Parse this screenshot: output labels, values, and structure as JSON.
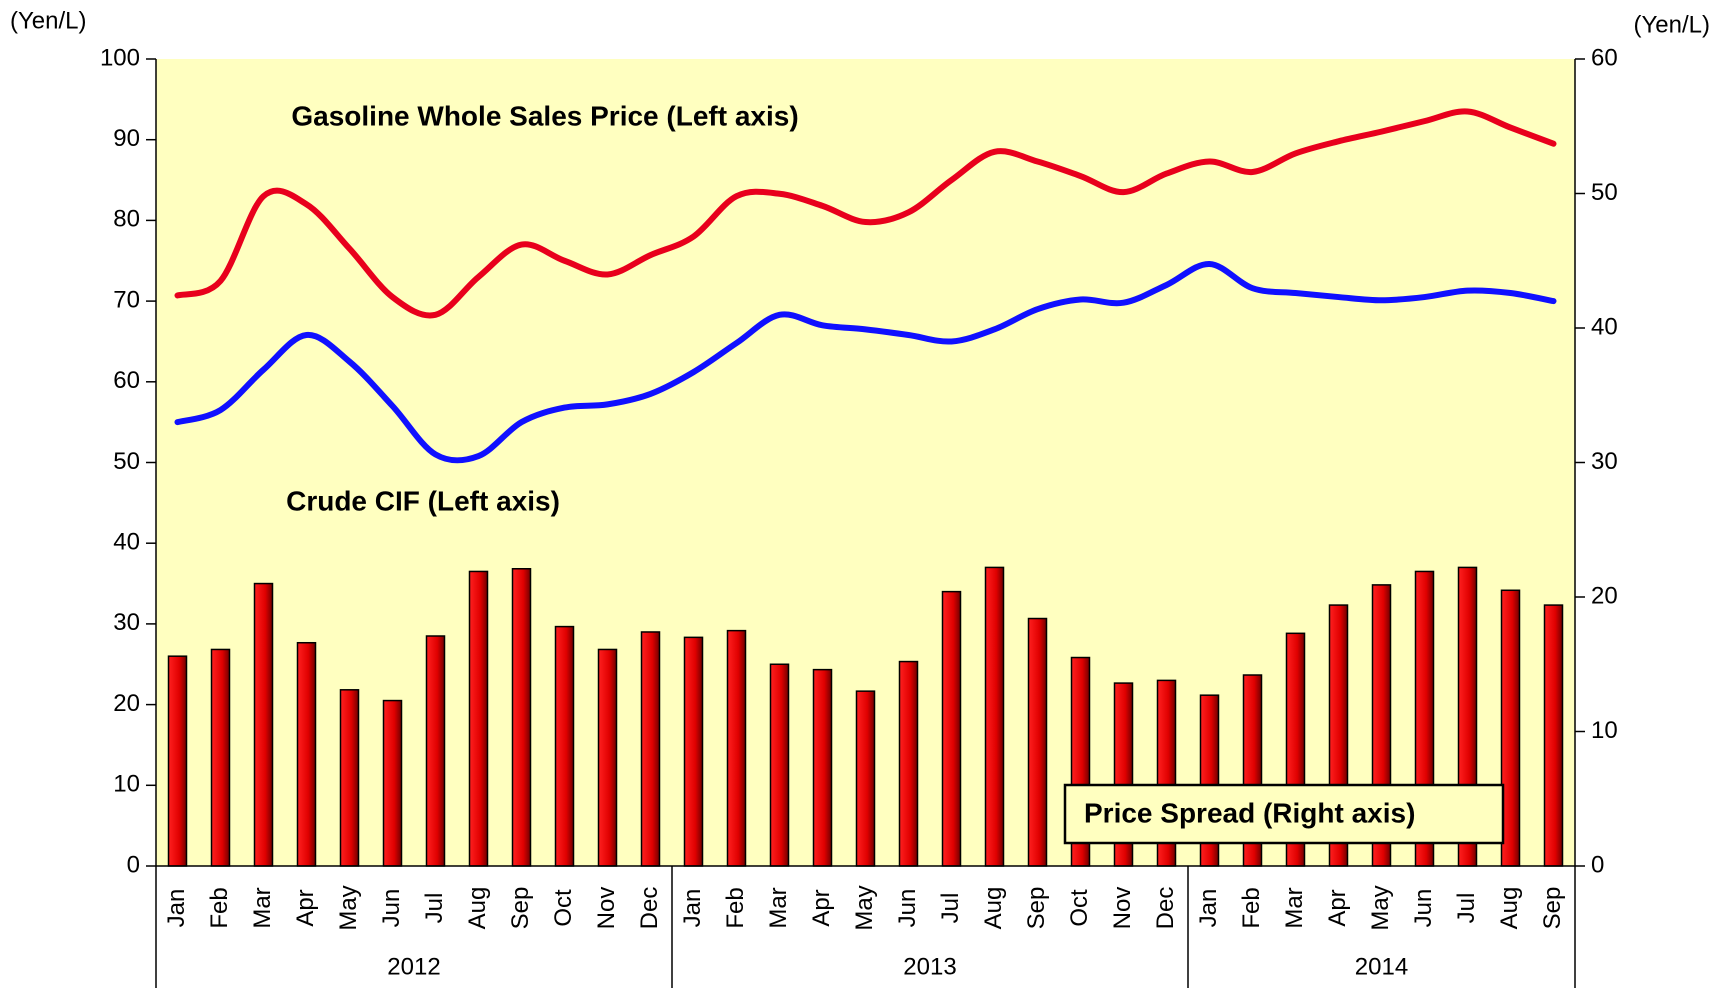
{
  "chart_data": {
    "type": "bar_line",
    "y_label": "(Yen/L)",
    "y2_label": "(Yen/L)",
    "categories": [
      "Jan",
      "Feb",
      "Mar",
      "Apr",
      "May",
      "Jun",
      "Jul",
      "Aug",
      "Sep",
      "Oct",
      "Nov",
      "Dec",
      "Jan",
      "Feb",
      "Mar",
      "Apr",
      "May",
      "Jun",
      "Jul",
      "Aug",
      "Sep",
      "Oct",
      "Nov",
      "Dec",
      "Jan",
      "Feb",
      "Mar",
      "Apr",
      "May",
      "Jun",
      "Jul",
      "Aug",
      "Sep"
    ],
    "years": [
      "2012",
      "2013",
      "2014"
    ],
    "series": [
      {
        "name": "Gasoline Whole Sales Price (Left axis)",
        "type": "line",
        "color": "#e8001c",
        "axis": "y",
        "values": [
          70.7,
          72.5,
          83,
          82,
          76.5,
          70.5,
          68.3,
          73,
          77,
          75,
          73.3,
          75.7,
          78,
          83,
          83.3,
          81.8,
          79.8,
          81,
          85,
          88.5,
          87.3,
          85.5,
          83.5,
          85.8,
          87.3,
          86,
          88.3,
          89.8,
          91,
          92.3,
          93.5,
          91.5,
          89.5
        ]
      },
      {
        "name": "Crude CIF (Left axis)",
        "type": "line",
        "color": "#1010ff",
        "axis": "y",
        "values": [
          55,
          56.5,
          61.5,
          65.8,
          62.5,
          57,
          51,
          50.8,
          55,
          56.8,
          57.2,
          58.5,
          61.2,
          64.8,
          68.3,
          67,
          66.5,
          65.8,
          65,
          66.5,
          69,
          70.2,
          69.8,
          72,
          74.6,
          71.6,
          71,
          70.5,
          70.1,
          70.5,
          71.3,
          71,
          70
        ]
      },
      {
        "name": "Price Spread (Right axis)",
        "type": "bar",
        "color": "#ff0000",
        "axis": "y2",
        "values": [
          15.6,
          16.1,
          21,
          16.6,
          13.1,
          12.3,
          17.1,
          21.9,
          22.1,
          17.8,
          16.1,
          17.4,
          17,
          17.5,
          15,
          14.6,
          13,
          15.2,
          20.4,
          22.2,
          18.4,
          15.5,
          13.6,
          13.8,
          12.7,
          14.2,
          17.3,
          19.4,
          20.9,
          21.9,
          22.2,
          20.5,
          19.4
        ]
      }
    ],
    "ylim": [
      0,
      100
    ],
    "yticks": [
      0,
      10,
      20,
      30,
      40,
      50,
      60,
      70,
      80,
      90,
      100
    ],
    "y2lim": [
      0,
      60
    ],
    "y2ticks": [
      0,
      10,
      20,
      30,
      40,
      50,
      60
    ],
    "background": "#ffffc0"
  }
}
